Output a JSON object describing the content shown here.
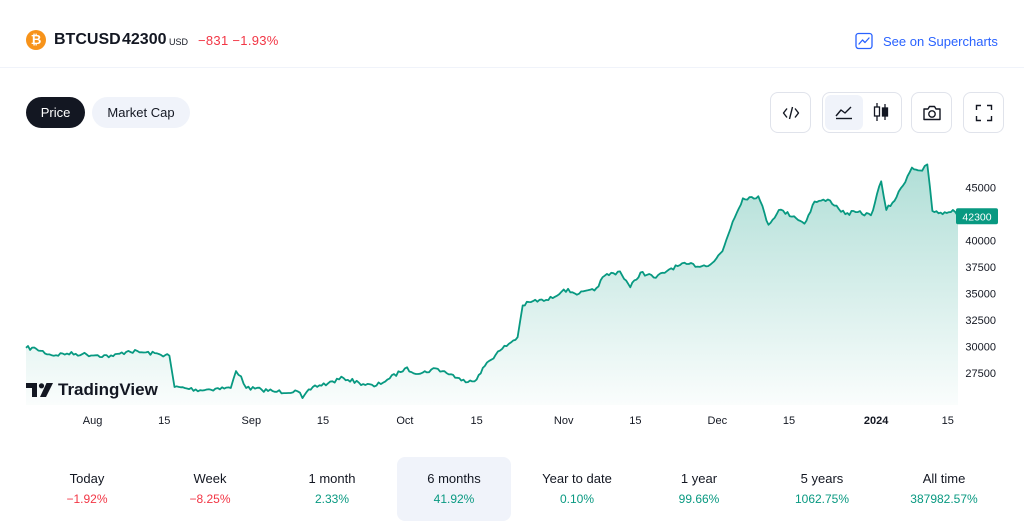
{
  "header": {
    "coin_glyph": "₿",
    "symbol": "BTCUSD",
    "price": "42300",
    "currency": "USD",
    "change": "−831  −1.93%",
    "change_color": "#f23645",
    "supercharts_label": "See on Supercharts",
    "link_color": "#2962ff"
  },
  "tabs": [
    {
      "label": "Price",
      "active": true
    },
    {
      "label": "Market Cap",
      "active": false
    }
  ],
  "toolbar": {
    "embed_icon": "code-icon",
    "area_icon": "area-chart-icon",
    "candles_icon": "candlestick-icon",
    "camera_icon": "camera-icon",
    "fullscreen_icon": "fullscreen-icon"
  },
  "branding": {
    "logo_text": "TradingView"
  },
  "chart_data": {
    "type": "area",
    "series": [
      {
        "points": [
          [
            "2023-07-19",
            29900
          ],
          [
            "2023-07-21",
            29800
          ],
          [
            "2023-07-24",
            29200
          ],
          [
            "2023-07-27",
            29350
          ],
          [
            "2023-07-30",
            29300
          ],
          [
            "2023-08-02",
            29200
          ],
          [
            "2023-08-05",
            29100
          ],
          [
            "2023-08-08",
            29600
          ],
          [
            "2023-08-11",
            29450
          ],
          [
            "2023-08-14",
            29300
          ],
          [
            "2023-08-16",
            29150
          ],
          [
            "2023-08-17",
            26200
          ],
          [
            "2023-08-19",
            26100
          ],
          [
            "2023-08-22",
            25900
          ],
          [
            "2023-08-25",
            26050
          ],
          [
            "2023-08-28",
            26100
          ],
          [
            "2023-08-29",
            27700
          ],
          [
            "2023-08-30",
            27200
          ],
          [
            "2023-08-31",
            26100
          ],
          [
            "2023-09-03",
            25950
          ],
          [
            "2023-09-06",
            25750
          ],
          [
            "2023-09-10",
            25800
          ],
          [
            "2023-09-11",
            25150
          ],
          [
            "2023-09-13",
            26200
          ],
          [
            "2023-09-16",
            26550
          ],
          [
            "2023-09-19",
            27050
          ],
          [
            "2023-09-22",
            26600
          ],
          [
            "2023-09-25",
            26250
          ],
          [
            "2023-09-28",
            27000
          ],
          [
            "2023-10-01",
            27950
          ],
          [
            "2023-10-04",
            27450
          ],
          [
            "2023-10-07",
            27950
          ],
          [
            "2023-10-10",
            27400
          ],
          [
            "2023-10-12",
            26800
          ],
          [
            "2023-10-15",
            26900
          ],
          [
            "2023-10-17",
            28500
          ],
          [
            "2023-10-20",
            29800
          ],
          [
            "2023-10-23",
            30900
          ],
          [
            "2023-10-24",
            33900
          ],
          [
            "2023-10-26",
            34300
          ],
          [
            "2023-10-29",
            34400
          ],
          [
            "2023-11-01",
            35400
          ],
          [
            "2023-11-04",
            35000
          ],
          [
            "2023-11-07",
            35300
          ],
          [
            "2023-11-09",
            36700
          ],
          [
            "2023-11-12",
            37100
          ],
          [
            "2023-11-14",
            35600
          ],
          [
            "2023-11-16",
            37000
          ],
          [
            "2023-11-19",
            36500
          ],
          [
            "2023-11-22",
            37400
          ],
          [
            "2023-11-25",
            37800
          ],
          [
            "2023-11-28",
            37600
          ],
          [
            "2023-11-30",
            37900
          ],
          [
            "2023-12-02",
            39000
          ],
          [
            "2023-12-04",
            41800
          ],
          [
            "2023-12-06",
            44000
          ],
          [
            "2023-12-09",
            44200
          ],
          [
            "2023-12-11",
            41500
          ],
          [
            "2023-12-13",
            42900
          ],
          [
            "2023-12-16",
            42300
          ],
          [
            "2023-12-18",
            41600
          ],
          [
            "2023-12-20",
            43700
          ],
          [
            "2023-12-23",
            43800
          ],
          [
            "2023-12-26",
            42500
          ],
          [
            "2023-12-28",
            42700
          ],
          [
            "2023-12-31",
            42400
          ],
          [
            "2024-01-02",
            45600
          ],
          [
            "2024-01-03",
            42900
          ],
          [
            "2024-01-05",
            44100
          ],
          [
            "2024-01-08",
            46900
          ],
          [
            "2024-01-10",
            46600
          ],
          [
            "2024-01-11",
            47200
          ],
          [
            "2024-01-12",
            42800
          ],
          [
            "2024-01-14",
            42500
          ],
          [
            "2024-01-16",
            42900
          ],
          [
            "2024-01-17",
            42300
          ]
        ],
        "color": "#089981"
      }
    ],
    "last_value": "42300",
    "ylim": [
      24500,
      49500
    ],
    "yticks": [
      "27500",
      "30000",
      "32500",
      "35000",
      "37500",
      "40000",
      "45000"
    ],
    "xticks": [
      {
        "date": "2023-08-01",
        "label": "Aug",
        "bold": false
      },
      {
        "date": "2023-08-15",
        "label": "15",
        "bold": false
      },
      {
        "date": "2023-09-01",
        "label": "Sep",
        "bold": false
      },
      {
        "date": "2023-09-15",
        "label": "15",
        "bold": false
      },
      {
        "date": "2023-10-01",
        "label": "Oct",
        "bold": false
      },
      {
        "date": "2023-10-15",
        "label": "15",
        "bold": false
      },
      {
        "date": "2023-11-01",
        "label": "Nov",
        "bold": false
      },
      {
        "date": "2023-11-15",
        "label": "15",
        "bold": false
      },
      {
        "date": "2023-12-01",
        "label": "Dec",
        "bold": false
      },
      {
        "date": "2023-12-15",
        "label": "15",
        "bold": false
      },
      {
        "date": "2024-01-01",
        "label": "2024",
        "bold": true
      },
      {
        "date": "2024-01-15",
        "label": "15",
        "bold": false
      }
    ],
    "grid": false
  },
  "performance": [
    {
      "label": "Today",
      "value": "−1.92%",
      "sign": "neg",
      "active": false
    },
    {
      "label": "Week",
      "value": "−8.25%",
      "sign": "neg",
      "active": false
    },
    {
      "label": "1 month",
      "value": "2.33%",
      "sign": "pos",
      "active": false
    },
    {
      "label": "6 months",
      "value": "41.92%",
      "sign": "pos",
      "active": true
    },
    {
      "label": "Year to date",
      "value": "0.10%",
      "sign": "pos",
      "active": false
    },
    {
      "label": "1 year",
      "value": "99.66%",
      "sign": "pos",
      "active": false
    },
    {
      "label": "5 years",
      "value": "1062.75%",
      "sign": "pos",
      "active": false
    },
    {
      "label": "All time",
      "value": "387982.57%",
      "sign": "pos",
      "active": false
    }
  ]
}
